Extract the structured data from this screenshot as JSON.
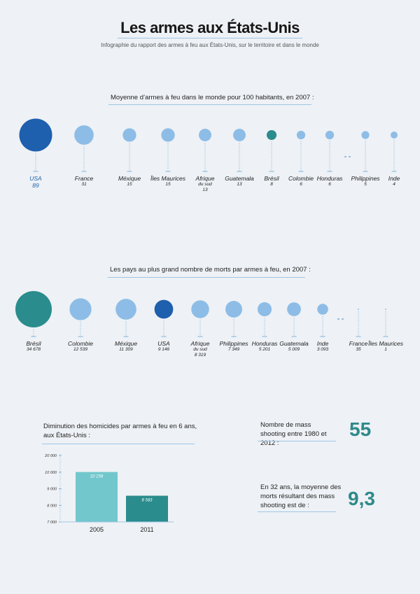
{
  "title": "Les armes aux États-Unis",
  "subtitle": "Infographie du rapport des armes à feu aux États-Unis, sur le territoire et dans le monde",
  "colors": {
    "dark_blue": "#1e5fae",
    "light_blue": "#8dbde6",
    "teal": "#2a8c8c",
    "light_teal": "#72c7cc",
    "rule": "#9ec7e6"
  },
  "section1": {
    "title": "Moyenne d’armes à feu dans le monde pour 100 habitants, en 2007 :",
    "items": [
      {
        "name": "USA",
        "value": "89",
        "v": 89,
        "color": "dark_blue",
        "highlight": true
      },
      {
        "name": "France",
        "value": "31",
        "v": 31,
        "color": "light_blue"
      },
      {
        "name": "Méxique",
        "value": "15",
        "v": 15,
        "color": "light_blue"
      },
      {
        "name": "Îles Maurices",
        "value": "15",
        "v": 15,
        "color": "light_blue"
      },
      {
        "name": "Afrique",
        "sub": "du sud",
        "value": "13",
        "v": 13,
        "color": "light_blue"
      },
      {
        "name": "Guatemala",
        "value": "13",
        "v": 13,
        "color": "light_blue"
      },
      {
        "name": "Brésil",
        "value": "8",
        "v": 8,
        "color": "teal"
      },
      {
        "name": "Colombie",
        "value": "6",
        "v": 6,
        "color": "light_blue"
      },
      {
        "name": "Honduras",
        "value": "6",
        "v": 6,
        "color": "light_blue"
      },
      {
        "name": "Philippines",
        "value": "5",
        "v": 5,
        "color": "light_blue"
      },
      {
        "name": "Inde",
        "value": "4",
        "v": 4,
        "color": "light_blue"
      }
    ]
  },
  "section2": {
    "title": "Les pays au plus grand nombre de morts par armes à feu, en 2007 :",
    "items": [
      {
        "name": "Brésil",
        "value": "34 678",
        "v": 34678,
        "color": "teal"
      },
      {
        "name": "Colombie",
        "value": "12 539",
        "v": 12539,
        "color": "light_blue"
      },
      {
        "name": "Méxique",
        "value": "11 309",
        "v": 11309,
        "color": "light_blue"
      },
      {
        "name": "USA",
        "value": "9 146",
        "v": 9146,
        "color": "dark_blue"
      },
      {
        "name": "Afrique",
        "sub": "du sud",
        "value": "8 319",
        "v": 8319,
        "color": "light_blue"
      },
      {
        "name": "Philippines",
        "value": "7 349",
        "v": 7349,
        "color": "light_blue"
      },
      {
        "name": "Honduras",
        "value": "5 201",
        "v": 5201,
        "color": "light_blue"
      },
      {
        "name": "Guatemala",
        "value": "5 009",
        "v": 5009,
        "color": "light_blue"
      },
      {
        "name": "Inde",
        "value": "3 093",
        "v": 3093,
        "color": "light_blue"
      },
      {
        "name": "France",
        "value": "35",
        "v": 35,
        "color": "light_blue"
      },
      {
        "name": "Îles Maurices",
        "value": "1",
        "v": 1,
        "color": "light_blue"
      }
    ]
  },
  "chart_data": {
    "type": "bar",
    "title": "Diminution des homicides par armes à feu en 6 ans, aux États-Unis :",
    "categories": [
      "2005",
      "2011"
    ],
    "values": [
      10158,
      8583
    ],
    "value_labels": [
      "10 158",
      "8 583"
    ],
    "colors": [
      "#72c7cc",
      "#2a8c8c"
    ],
    "yticks": [
      7000,
      8000,
      9000,
      10000,
      20000
    ],
    "ytick_labels": [
      "7 000",
      "8 000",
      "9 000",
      "10 000",
      "20 000"
    ],
    "ylim": [
      7000,
      20000
    ],
    "y_scale": "broken axis (7 000 – 10 000 linear, break up to 20 000)",
    "grid": false
  },
  "mass_shooting": {
    "count_text": "Nombre de mass shooting entre 1980 et 2012 :",
    "count_value": "55",
    "avg_text": "En 32 ans, la moyenne des morts résultant des mass shooting est de :",
    "avg_value": "9,3"
  }
}
